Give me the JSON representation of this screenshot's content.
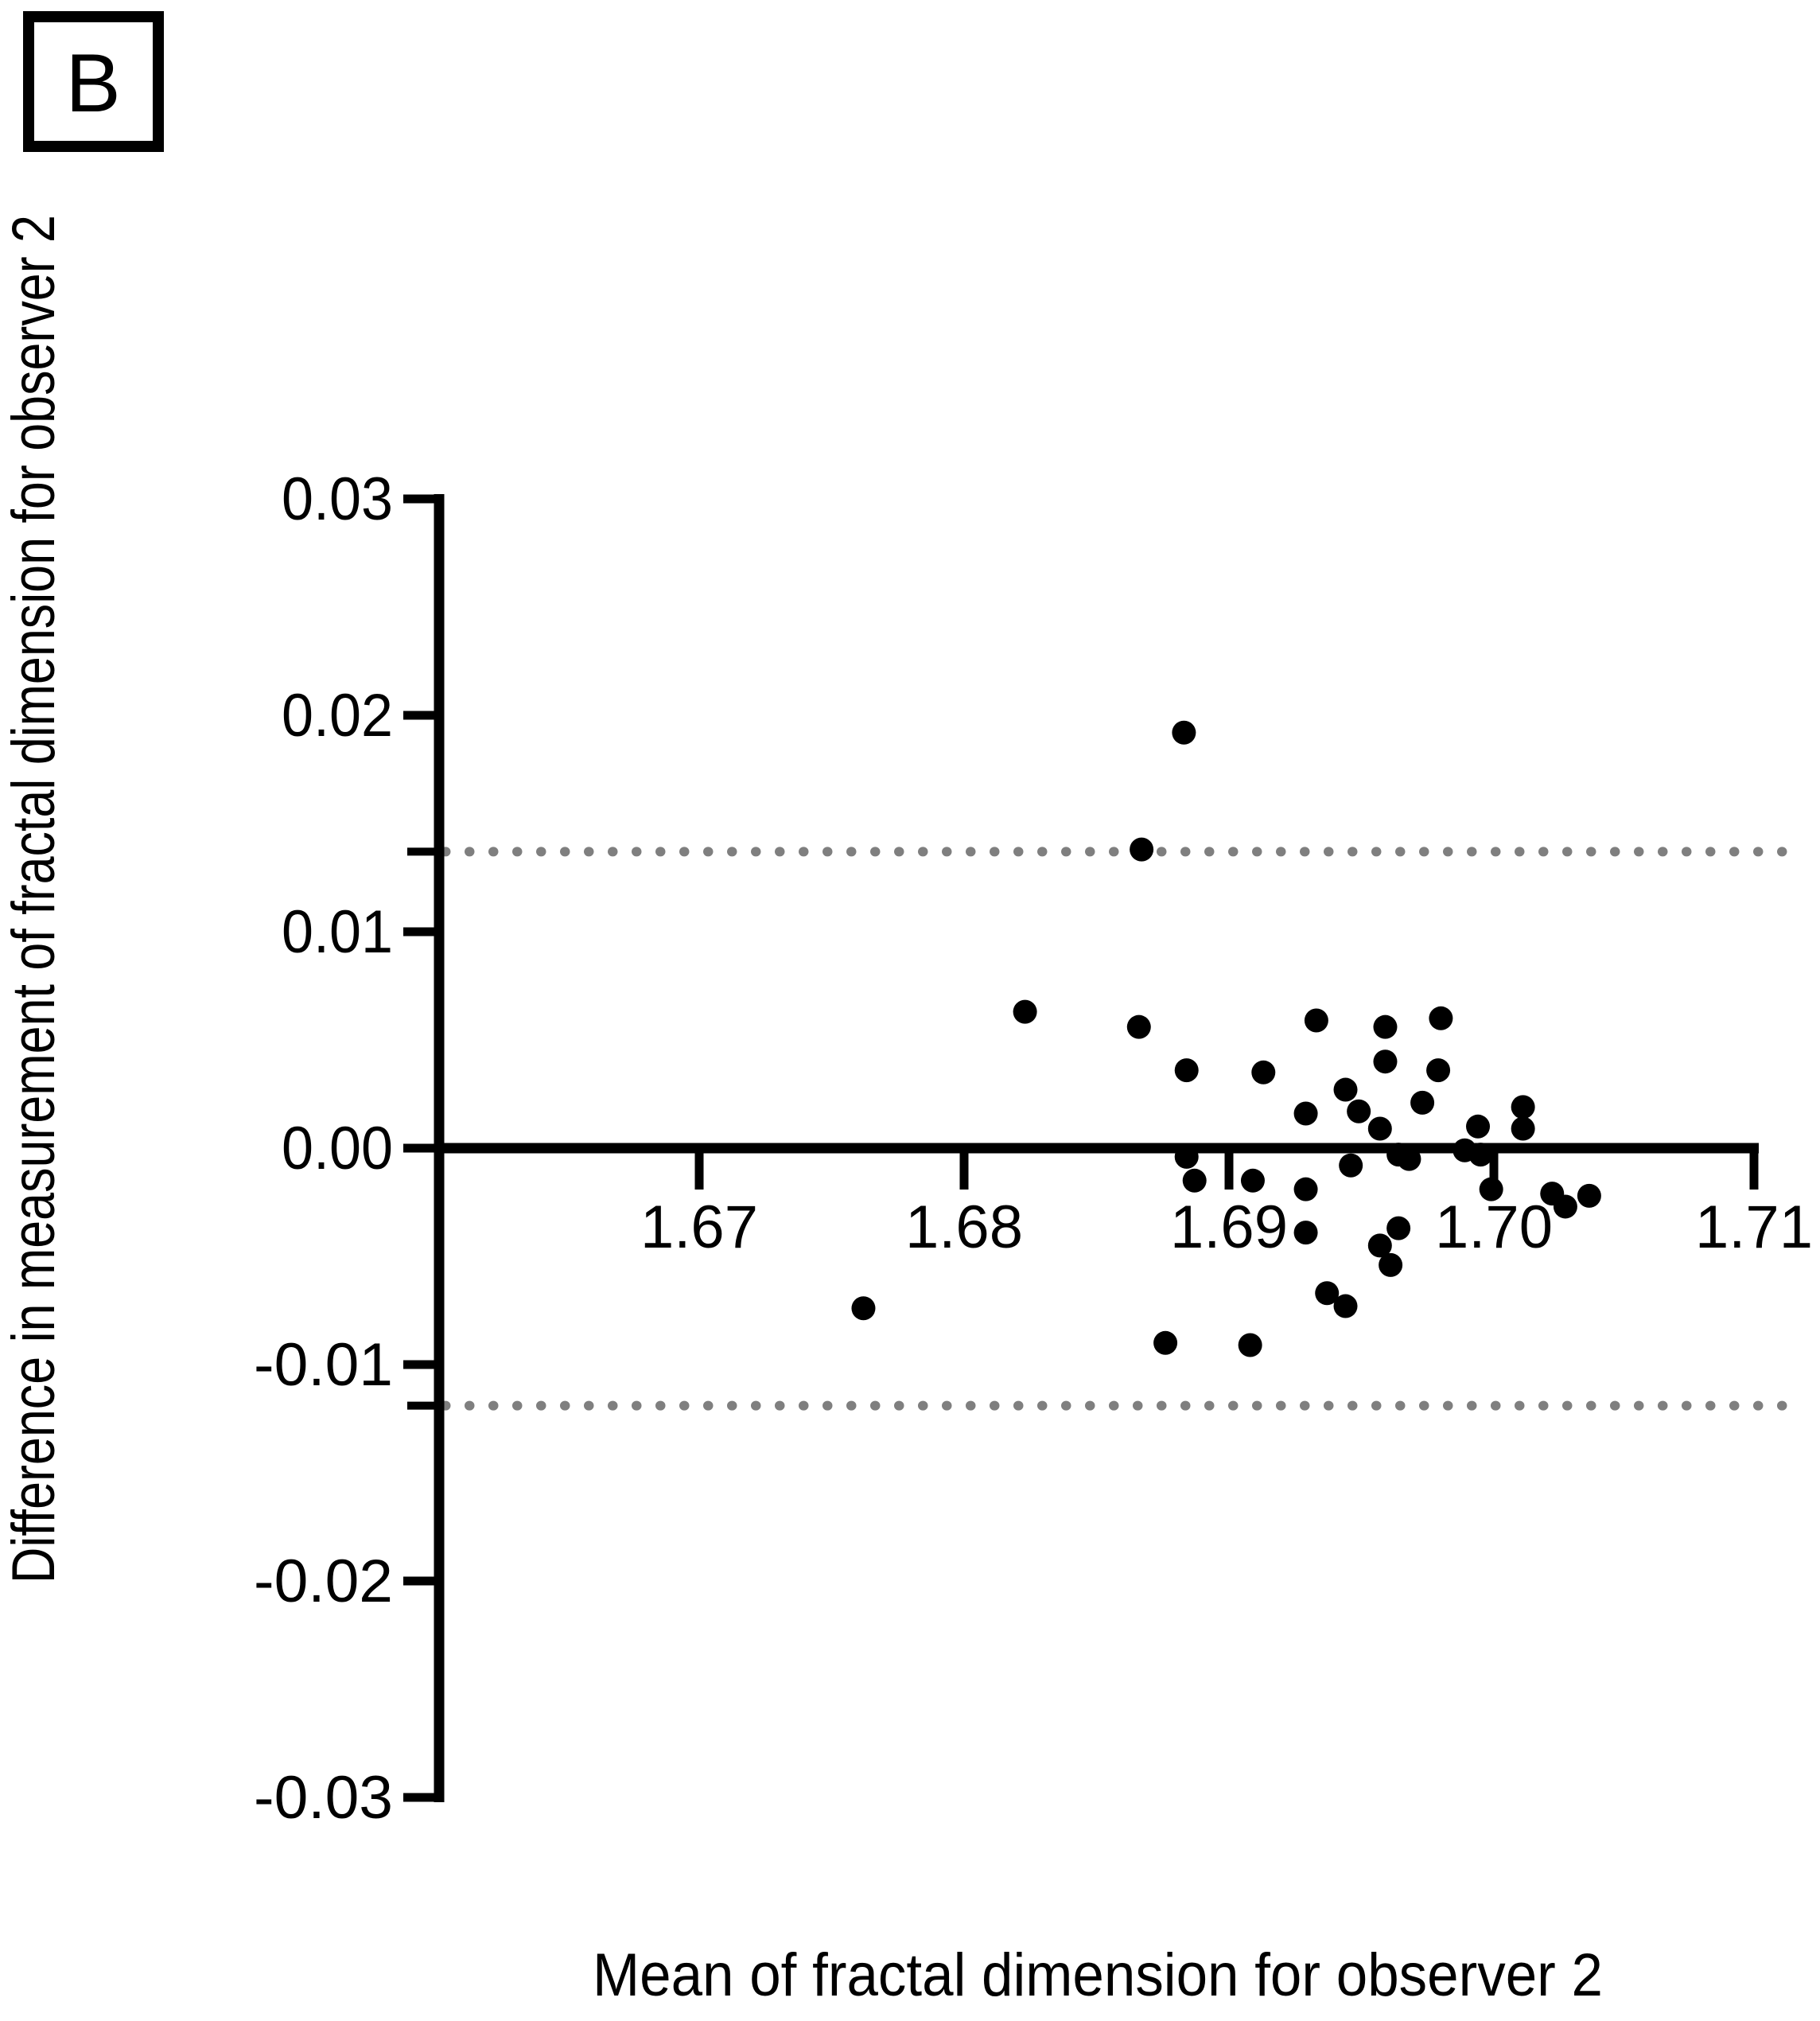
{
  "panel": {
    "label": "B"
  },
  "chart_data": {
    "type": "scatter",
    "title": "",
    "xlabel": "Mean of fractal dimension for observer 2",
    "ylabel": "Difference in measurement of fractal dimension for observer 2",
    "xlim": [
      1.66,
      1.71
    ],
    "ylim": [
      -0.03,
      0.03
    ],
    "x_tick_values": [
      1.67,
      1.68,
      1.69,
      1.7,
      1.71
    ],
    "x_tick_labels": [
      "1.67",
      "1.68",
      "1.69",
      "1.70",
      "1.71"
    ],
    "y_tick_values": [
      0.03,
      0.02,
      0.01,
      0.0,
      -0.01,
      -0.02,
      -0.03
    ],
    "y_tick_labels": [
      "0.03",
      "0.02",
      "0.01",
      "0.00",
      "-0.01",
      "-0.02",
      "-0.03"
    ],
    "grid": false,
    "legend": "none",
    "zero_line_y": 0.0,
    "limits_of_agreement": {
      "upper": 0.0137,
      "lower": -0.0119
    },
    "loa_line_style": "dotted",
    "colors": {
      "axis": "#000000",
      "point": "#000000",
      "loa_line": "#7f7f7f",
      "background": "#ffffff"
    },
    "points": [
      [
        1.6883,
        0.0192
      ],
      [
        1.6867,
        0.0138
      ],
      [
        1.6823,
        0.0063
      ],
      [
        1.6866,
        0.0056
      ],
      [
        1.6762,
        -0.0074
      ],
      [
        1.6884,
        0.0036
      ],
      [
        1.6913,
        0.0035
      ],
      [
        1.6933,
        0.0059
      ],
      [
        1.6929,
        0.0016
      ],
      [
        1.6944,
        0.0027
      ],
      [
        1.6949,
        0.0017
      ],
      [
        1.6959,
        0.0056
      ],
      [
        1.6959,
        0.004
      ],
      [
        1.698,
        0.006
      ],
      [
        1.6979,
        0.0036
      ],
      [
        1.6973,
        0.0021
      ],
      [
        1.6957,
        0.0009
      ],
      [
        1.6909,
        -0.0015
      ],
      [
        1.6929,
        -0.0019
      ],
      [
        1.6929,
        -0.0039
      ],
      [
        1.6946,
        -0.0008
      ],
      [
        1.6964,
        -0.0003
      ],
      [
        1.6968,
        -0.0005
      ],
      [
        1.6994,
        0.001
      ],
      [
        1.7011,
        0.0019
      ],
      [
        1.7011,
        0.0009
      ],
      [
        1.6989,
        -0.0001
      ],
      [
        1.6995,
        -0.0003
      ],
      [
        1.6999,
        -0.0019
      ],
      [
        1.7022,
        -0.0021
      ],
      [
        1.7027,
        -0.0027
      ],
      [
        1.7036,
        -0.0022
      ],
      [
        1.6964,
        -0.0037
      ],
      [
        1.6957,
        -0.0045
      ],
      [
        1.6961,
        -0.0054
      ],
      [
        1.6937,
        -0.0067
      ],
      [
        1.6944,
        -0.0073
      ],
      [
        1.6876,
        -0.009
      ],
      [
        1.6908,
        -0.0091
      ],
      [
        1.6884,
        -0.0004
      ],
      [
        1.6887,
        -0.0015
      ]
    ]
  }
}
